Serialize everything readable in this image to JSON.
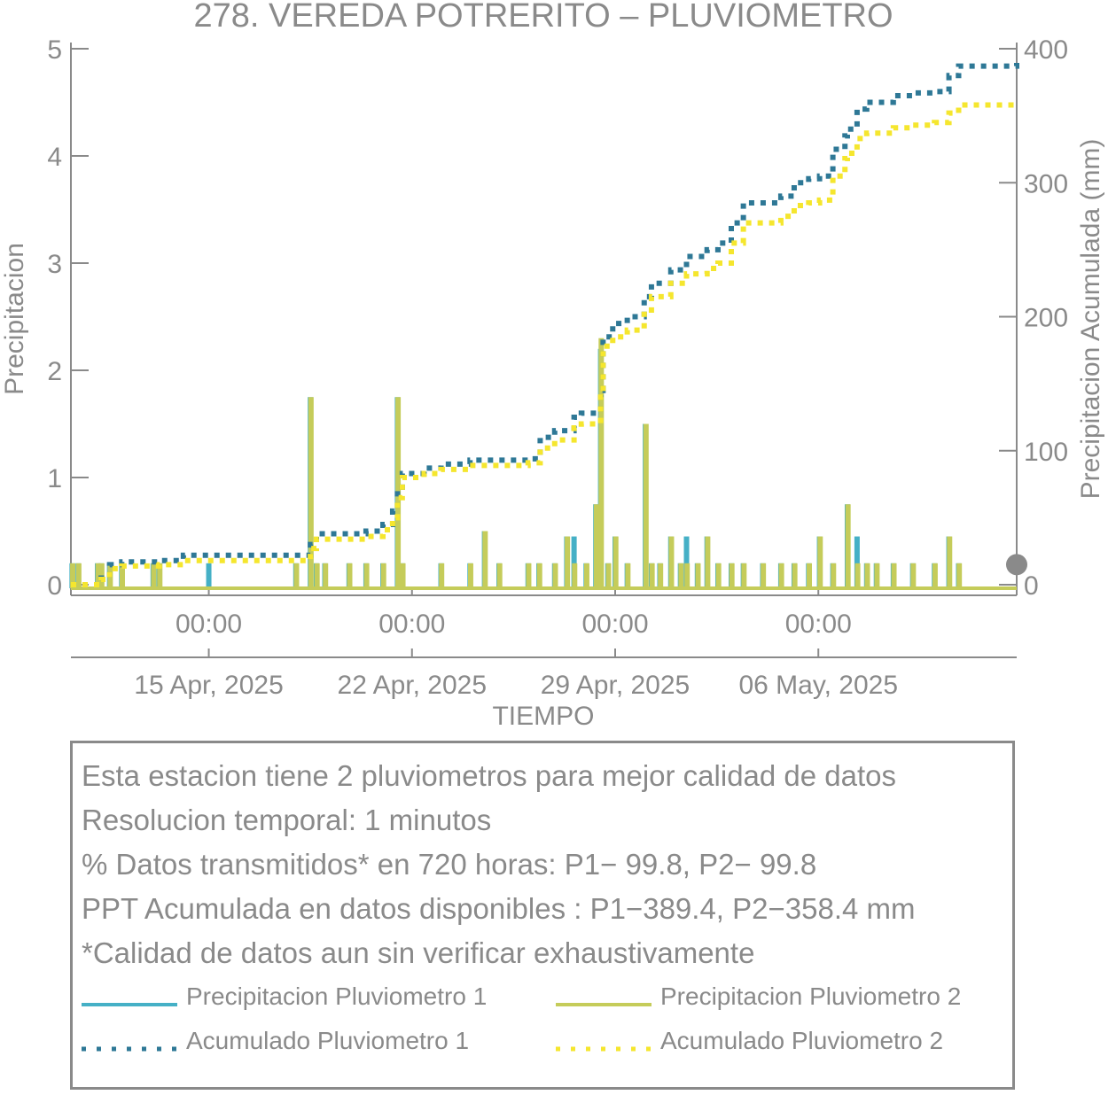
{
  "chart_data": {
    "type": "line",
    "title": "278. VEREDA POTRERITO – PLUVIOMETRO",
    "xlabel": "TIEMPO",
    "ylabel": "Precipitacion",
    "ylabel_right": "Precipitacion Acumulada (mm)",
    "ylim": [
      0,
      5
    ],
    "ylim_right": [
      0,
      400
    ],
    "yticks": [
      0,
      1,
      2,
      3,
      4,
      5
    ],
    "yticks_right": [
      0,
      100,
      200,
      300,
      400
    ],
    "xlim": [
      "2025-04-10T06:00",
      "2025-05-12T20:00"
    ],
    "xticks": [
      {
        "date": "2025-04-15T00:00",
        "time_label": "00:00",
        "date_label": "15 Apr, 2025"
      },
      {
        "date": "2025-04-22T00:00",
        "time_label": "00:00",
        "date_label": "22 Apr, 2025"
      },
      {
        "date": "2025-04-29T00:00",
        "time_label": "00:00",
        "date_label": "29 Apr, 2025"
      },
      {
        "date": "2025-05-06T00:00",
        "time_label": "00:00",
        "date_label": "06 May, 2025"
      }
    ],
    "colors": {
      "p1": "#45b0c6",
      "p2": "#c5cc5a",
      "acc1": "#2e7896",
      "acc2": "#f5e62e",
      "axis": "#8a8a8a"
    },
    "series": [
      {
        "name": "Precipitacion Pluviometro 1",
        "axis": "left",
        "style": "bars",
        "points": [
          [
            "2025-04-10T07:00",
            0.2
          ],
          [
            "2025-04-10T12:00",
            0.2
          ],
          [
            "2025-04-11T04:00",
            0.2
          ],
          [
            "2025-04-11T07:00",
            0.2
          ],
          [
            "2025-04-11T14:00",
            0.2
          ],
          [
            "2025-04-12T00:00",
            0.2
          ],
          [
            "2025-04-13T02:00",
            0.2
          ],
          [
            "2025-04-13T07:00",
            0.2
          ],
          [
            "2025-04-15T00:00",
            0.2
          ],
          [
            "2025-04-18T00:00",
            0.2
          ],
          [
            "2025-04-18T12:00",
            1.75
          ],
          [
            "2025-04-18T17:00",
            0.2
          ],
          [
            "2025-04-19T00:00",
            0.2
          ],
          [
            "2025-04-19T20:00",
            0.2
          ],
          [
            "2025-04-20T10:00",
            0.2
          ],
          [
            "2025-04-21T00:00",
            0.2
          ],
          [
            "2025-04-21T12:00",
            1.75
          ],
          [
            "2025-04-21T16:00",
            0.2
          ],
          [
            "2025-04-23T00:00",
            0.2
          ],
          [
            "2025-04-24T00:00",
            0.2
          ],
          [
            "2025-04-24T12:00",
            0.5
          ],
          [
            "2025-04-25T00:00",
            0.2
          ],
          [
            "2025-04-26T00:00",
            0.2
          ],
          [
            "2025-04-26T09:00",
            0.2
          ],
          [
            "2025-04-26T22:00",
            0.2
          ],
          [
            "2025-04-27T08:00",
            0.45
          ],
          [
            "2025-04-27T14:00",
            0.45
          ],
          [
            "2025-04-28T00:00",
            0.2
          ],
          [
            "2025-04-28T08:00",
            0.75
          ],
          [
            "2025-04-28T12:00",
            2.2
          ],
          [
            "2025-04-28T18:00",
            0.2
          ],
          [
            "2025-04-29T00:00",
            0.45
          ],
          [
            "2025-04-29T10:00",
            0.2
          ],
          [
            "2025-04-30T01:00",
            1.5
          ],
          [
            "2025-04-30T06:00",
            0.2
          ],
          [
            "2025-04-30T13:00",
            0.2
          ],
          [
            "2025-04-30T22:00",
            0.45
          ],
          [
            "2025-05-01T06:00",
            0.2
          ],
          [
            "2025-05-01T11:00",
            0.45
          ],
          [
            "2025-05-01T20:00",
            0.2
          ],
          [
            "2025-05-02T04:00",
            0.45
          ],
          [
            "2025-05-02T13:00",
            0.2
          ],
          [
            "2025-05-03T00:00",
            0.2
          ],
          [
            "2025-05-03T10:00",
            0.2
          ],
          [
            "2025-05-04T02:00",
            0.2
          ],
          [
            "2025-05-04T17:00",
            0.2
          ],
          [
            "2025-05-05T04:00",
            0.2
          ],
          [
            "2025-05-05T16:00",
            0.2
          ],
          [
            "2025-05-06T01:00",
            0.45
          ],
          [
            "2025-05-06T12:00",
            0.2
          ],
          [
            "2025-05-07T00:00",
            0.75
          ],
          [
            "2025-05-07T08:00",
            0.45
          ],
          [
            "2025-05-07T16:00",
            0.2
          ],
          [
            "2025-05-08T00:00",
            0.2
          ],
          [
            "2025-05-08T14:00",
            0.2
          ],
          [
            "2025-05-09T06:00",
            0.2
          ],
          [
            "2025-05-10T00:00",
            0.2
          ],
          [
            "2025-05-10T12:00",
            0.45
          ],
          [
            "2025-05-10T20:00",
            0.2
          ]
        ]
      },
      {
        "name": "Precipitacion Pluviometro 2",
        "axis": "left",
        "style": "bars",
        "points": [
          [
            "2025-04-10T07:30",
            0.2
          ],
          [
            "2025-04-10T12:30",
            0.2
          ],
          [
            "2025-04-11T04:30",
            0.2
          ],
          [
            "2025-04-11T07:30",
            0.2
          ],
          [
            "2025-04-11T14:30",
            0.2
          ],
          [
            "2025-04-12T00:30",
            0.2
          ],
          [
            "2025-04-13T02:30",
            0.2
          ],
          [
            "2025-04-13T07:30",
            0.2
          ],
          [
            "2025-04-18T00:30",
            0.2
          ],
          [
            "2025-04-18T12:30",
            1.75
          ],
          [
            "2025-04-18T17:30",
            0.2
          ],
          [
            "2025-04-19T00:30",
            0.2
          ],
          [
            "2025-04-19T20:30",
            0.2
          ],
          [
            "2025-04-20T10:30",
            0.2
          ],
          [
            "2025-04-21T00:30",
            0.2
          ],
          [
            "2025-04-21T12:30",
            1.75
          ],
          [
            "2025-04-21T16:30",
            0.2
          ],
          [
            "2025-04-23T00:30",
            0.2
          ],
          [
            "2025-04-24T00:30",
            0.2
          ],
          [
            "2025-04-24T12:30",
            0.5
          ],
          [
            "2025-04-25T00:30",
            0.2
          ],
          [
            "2025-04-26T00:30",
            0.2
          ],
          [
            "2025-04-26T09:30",
            0.2
          ],
          [
            "2025-04-26T22:30",
            0.2
          ],
          [
            "2025-04-27T08:30",
            0.45
          ],
          [
            "2025-04-27T14:30",
            0.2
          ],
          [
            "2025-04-28T00:30",
            0.2
          ],
          [
            "2025-04-28T08:30",
            0.75
          ],
          [
            "2025-04-28T12:30",
            2.3
          ],
          [
            "2025-04-28T18:30",
            0.2
          ],
          [
            "2025-04-29T00:30",
            0.45
          ],
          [
            "2025-04-29T10:30",
            0.2
          ],
          [
            "2025-04-30T01:30",
            1.5
          ],
          [
            "2025-04-30T06:30",
            0.2
          ],
          [
            "2025-04-30T13:30",
            0.2
          ],
          [
            "2025-04-30T22:30",
            0.45
          ],
          [
            "2025-05-01T06:30",
            0.2
          ],
          [
            "2025-05-01T11:30",
            0.2
          ],
          [
            "2025-05-01T20:30",
            0.2
          ],
          [
            "2025-05-02T04:30",
            0.45
          ],
          [
            "2025-05-02T13:30",
            0.2
          ],
          [
            "2025-05-03T00:30",
            0.2
          ],
          [
            "2025-05-03T10:30",
            0.2
          ],
          [
            "2025-05-04T02:30",
            0.2
          ],
          [
            "2025-05-04T17:30",
            0.2
          ],
          [
            "2025-05-05T04:30",
            0.2
          ],
          [
            "2025-05-05T16:30",
            0.2
          ],
          [
            "2025-05-06T01:30",
            0.45
          ],
          [
            "2025-05-06T12:30",
            0.2
          ],
          [
            "2025-05-07T00:30",
            0.75
          ],
          [
            "2025-05-07T08:30",
            0.2
          ],
          [
            "2025-05-07T16:30",
            0.2
          ],
          [
            "2025-05-08T00:30",
            0.2
          ],
          [
            "2025-05-08T14:30",
            0.2
          ],
          [
            "2025-05-09T06:30",
            0.2
          ],
          [
            "2025-05-10T00:30",
            0.2
          ],
          [
            "2025-05-10T12:30",
            0.45
          ],
          [
            "2025-05-10T20:30",
            0.2
          ]
        ]
      },
      {
        "name": "Acumulado Pluviometro 1",
        "axis": "right",
        "style": "step-dotted",
        "points": [
          [
            "2025-04-10T06:00",
            0
          ],
          [
            "2025-04-11T07:00",
            5
          ],
          [
            "2025-04-11T14:00",
            15
          ],
          [
            "2025-04-12T00:00",
            17
          ],
          [
            "2025-04-13T07:00",
            18
          ],
          [
            "2025-04-14T03:00",
            22
          ],
          [
            "2025-04-18T12:00",
            30
          ],
          [
            "2025-04-18T17:00",
            38
          ],
          [
            "2025-04-20T10:00",
            40
          ],
          [
            "2025-04-21T00:00",
            45
          ],
          [
            "2025-04-21T08:00",
            55
          ],
          [
            "2025-04-21T12:00",
            70
          ],
          [
            "2025-04-21T16:00",
            83
          ],
          [
            "2025-04-22T10:00",
            87
          ],
          [
            "2025-04-23T00:00",
            90
          ],
          [
            "2025-04-24T00:00",
            93
          ],
          [
            "2025-04-26T00:00",
            94
          ],
          [
            "2025-04-26T10:00",
            110
          ],
          [
            "2025-04-26T22:00",
            115
          ],
          [
            "2025-04-27T14:00",
            125
          ],
          [
            "2025-04-27T20:00,",
            128
          ],
          [
            "2025-04-28T12:00",
            145
          ],
          [
            "2025-04-28T14:00",
            185
          ],
          [
            "2025-04-28T22:00",
            195
          ],
          [
            "2025-04-29T10:00",
            200
          ],
          [
            "2025-04-30T00:00",
            215
          ],
          [
            "2025-04-30T06:00",
            225
          ],
          [
            "2025-04-30T22:00",
            235
          ],
          [
            "2025-05-01T11:00",
            245
          ],
          [
            "2025-05-02T04:00",
            250
          ],
          [
            "2025-05-02T13:00",
            255
          ],
          [
            "2025-05-03T00:00",
            270
          ],
          [
            "2025-05-03T10:00",
            285
          ],
          [
            "2025-05-04T17:00",
            290
          ],
          [
            "2025-05-05T04:00",
            300
          ],
          [
            "2025-05-05T16:00",
            303
          ],
          [
            "2025-05-06T01:00",
            305
          ],
          [
            "2025-05-06T12:00",
            325
          ],
          [
            "2025-05-06T22:00",
            335
          ],
          [
            "2025-05-07T00:00",
            340
          ],
          [
            "2025-05-07T08:00",
            355
          ],
          [
            "2025-05-07T16:00",
            360
          ],
          [
            "2025-05-08T14:00",
            365
          ],
          [
            "2025-05-09T06:00",
            367
          ],
          [
            "2025-05-10T00:00",
            368
          ],
          [
            "2025-05-10T12:00",
            380
          ],
          [
            "2025-05-10T20:00",
            387
          ],
          [
            "2025-05-12T20:00",
            389.4
          ]
        ]
      },
      {
        "name": "Acumulado Pluviometro 2",
        "axis": "right",
        "style": "step-dotted",
        "points": [
          [
            "2025-04-10T06:00",
            0
          ],
          [
            "2025-04-11T07:00",
            4
          ],
          [
            "2025-04-11T14:00",
            12
          ],
          [
            "2025-04-12T00:00",
            14
          ],
          [
            "2025-04-13T07:00",
            15
          ],
          [
            "2025-04-14T03:00",
            18
          ],
          [
            "2025-04-18T12:00",
            27
          ],
          [
            "2025-04-18T17:00",
            34
          ],
          [
            "2025-04-20T10:00",
            36
          ],
          [
            "2025-04-21T00:00",
            41
          ],
          [
            "2025-04-21T08:00",
            50
          ],
          [
            "2025-04-21T12:00",
            65
          ],
          [
            "2025-04-21T16:00",
            80
          ],
          [
            "2025-04-22T10:00",
            83
          ],
          [
            "2025-04-23T00:00",
            86
          ],
          [
            "2025-04-24T00:00",
            89
          ],
          [
            "2025-04-26T00:00",
            91
          ],
          [
            "2025-04-26T10:00",
            102
          ],
          [
            "2025-04-26T22:00",
            108
          ],
          [
            "2025-04-27T14:00",
            117
          ],
          [
            "2025-04-27T20:00",
            120
          ],
          [
            "2025-04-28T12:00",
            140
          ],
          [
            "2025-04-28T14:00",
            178
          ],
          [
            "2025-04-28T22:00",
            185
          ],
          [
            "2025-04-29T10:00",
            190
          ],
          [
            "2025-04-30T00:00",
            205
          ],
          [
            "2025-04-30T06:00",
            215
          ],
          [
            "2025-04-30T22:00",
            225
          ],
          [
            "2025-05-01T11:00",
            232
          ],
          [
            "2025-05-02T04:00",
            236
          ],
          [
            "2025-05-02T13:00",
            240
          ],
          [
            "2025-05-03T00:00",
            255
          ],
          [
            "2025-05-03T10:00",
            270
          ],
          [
            "2025-05-04T17:00",
            275
          ],
          [
            "2025-05-05T04:00",
            283
          ],
          [
            "2025-05-05T16:00",
            285
          ],
          [
            "2025-05-06T01:00",
            287
          ],
          [
            "2025-05-06T12:00",
            305
          ],
          [
            "2025-05-06T22:00",
            318
          ],
          [
            "2025-05-07T00:00",
            322
          ],
          [
            "2025-05-07T08:00",
            333
          ],
          [
            "2025-05-07T16:00",
            337
          ],
          [
            "2025-05-08T14:00",
            341
          ],
          [
            "2025-05-09T06:00",
            343
          ],
          [
            "2025-05-10T00:00",
            345
          ],
          [
            "2025-05-10T12:00",
            352
          ],
          [
            "2025-05-10T20:00",
            358
          ],
          [
            "2025-05-12T20:00",
            358.4
          ]
        ]
      }
    ],
    "annotations": {
      "right_axis_marker_value": 15
    }
  },
  "info_box": {
    "lines": [
      "Esta estacion tiene 2 pluviometros para mejor calidad de datos",
      "Resolucion temporal: 1 minutos",
      "% Datos transmitidos* en 720 horas: P1− 99.8, P2− 99.8",
      "PPT Acumulada en datos disponibles : P1−389.4, P2−358.4 mm",
      "*Calidad de datos aun sin verificar exhaustivamente"
    ],
    "legend": [
      {
        "label": "Precipitacion Pluviometro 1",
        "style": "solid",
        "color": "#45b0c6"
      },
      {
        "label": "Precipitacion Pluviometro 2",
        "style": "solid",
        "color": "#c5cc5a"
      },
      {
        "label": "Acumulado Pluviometro 1",
        "style": "dotted",
        "color": "#2e7896"
      },
      {
        "label": "Acumulado Pluviometro 2",
        "style": "dotted",
        "color": "#f5e62e"
      }
    ]
  }
}
